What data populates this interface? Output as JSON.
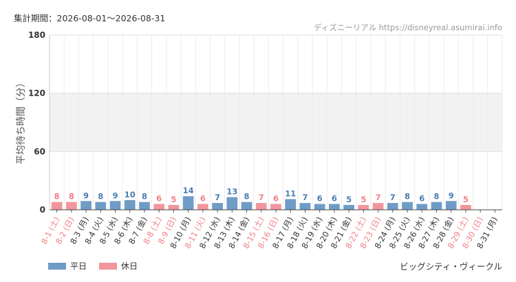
{
  "header": {
    "period": "集計期間：2026-08-01～2026-08-31",
    "source": "ディズニーリアル https://disneyreal.asumirai.info"
  },
  "footer": {
    "attraction": "ビッグシティ・ヴィークル"
  },
  "legend": {
    "weekday_label": "平日",
    "holiday_label": "休日"
  },
  "colors": {
    "weekday": "#6f9bc7",
    "holiday": "#f3959c",
    "weekday_text": "#4a7db5",
    "holiday_text": "#f07f86",
    "axis_text": "#333333",
    "band": "#f2f2f2"
  },
  "chart_data": {
    "type": "bar",
    "ylabel": "平均待ち時間（分）",
    "ylim": [
      0,
      180
    ],
    "yticks": [
      0,
      60,
      120,
      180
    ],
    "grid": true,
    "legend_position": "bottom-left",
    "categories": [
      "8-1 (土)",
      "8-2 (日)",
      "8-3 (月)",
      "8-4 (火)",
      "8-5 (水)",
      "8-6 (木)",
      "8-7 (金)",
      "8-8 (土)",
      "8-9 (日)",
      "8-10 (月)",
      "8-11 (火)",
      "8-12 (水)",
      "8-13 (木)",
      "8-14 (金)",
      "8-15 (土)",
      "8-16 (日)",
      "8-17 (月)",
      "8-18 (火)",
      "8-19 (水)",
      "8-20 (木)",
      "8-21 (金)",
      "8-22 (土)",
      "8-23 (日)",
      "8-24 (月)",
      "8-25 (火)",
      "8-26 (水)",
      "8-27 (木)",
      "8-28 (金)",
      "8-29 (土)",
      "8-30 (日)",
      "8-31 (月)"
    ],
    "values": [
      8,
      8,
      9,
      8,
      9,
      10,
      8,
      6,
      5,
      14,
      6,
      7,
      13,
      8,
      7,
      6,
      11,
      7,
      6,
      6,
      5,
      5,
      7,
      7,
      8,
      6,
      8,
      9,
      5,
      null,
      null
    ],
    "day_type": [
      "holiday",
      "holiday",
      "weekday",
      "weekday",
      "weekday",
      "weekday",
      "weekday",
      "holiday",
      "holiday",
      "weekday",
      "holiday",
      "weekday",
      "weekday",
      "weekday",
      "holiday",
      "holiday",
      "weekday",
      "weekday",
      "weekday",
      "weekday",
      "weekday",
      "holiday",
      "holiday",
      "weekday",
      "weekday",
      "weekday",
      "weekday",
      "weekday",
      "holiday",
      "holiday",
      "weekday"
    ],
    "series": [
      {
        "name": "平日"
      },
      {
        "name": "休日"
      }
    ]
  }
}
